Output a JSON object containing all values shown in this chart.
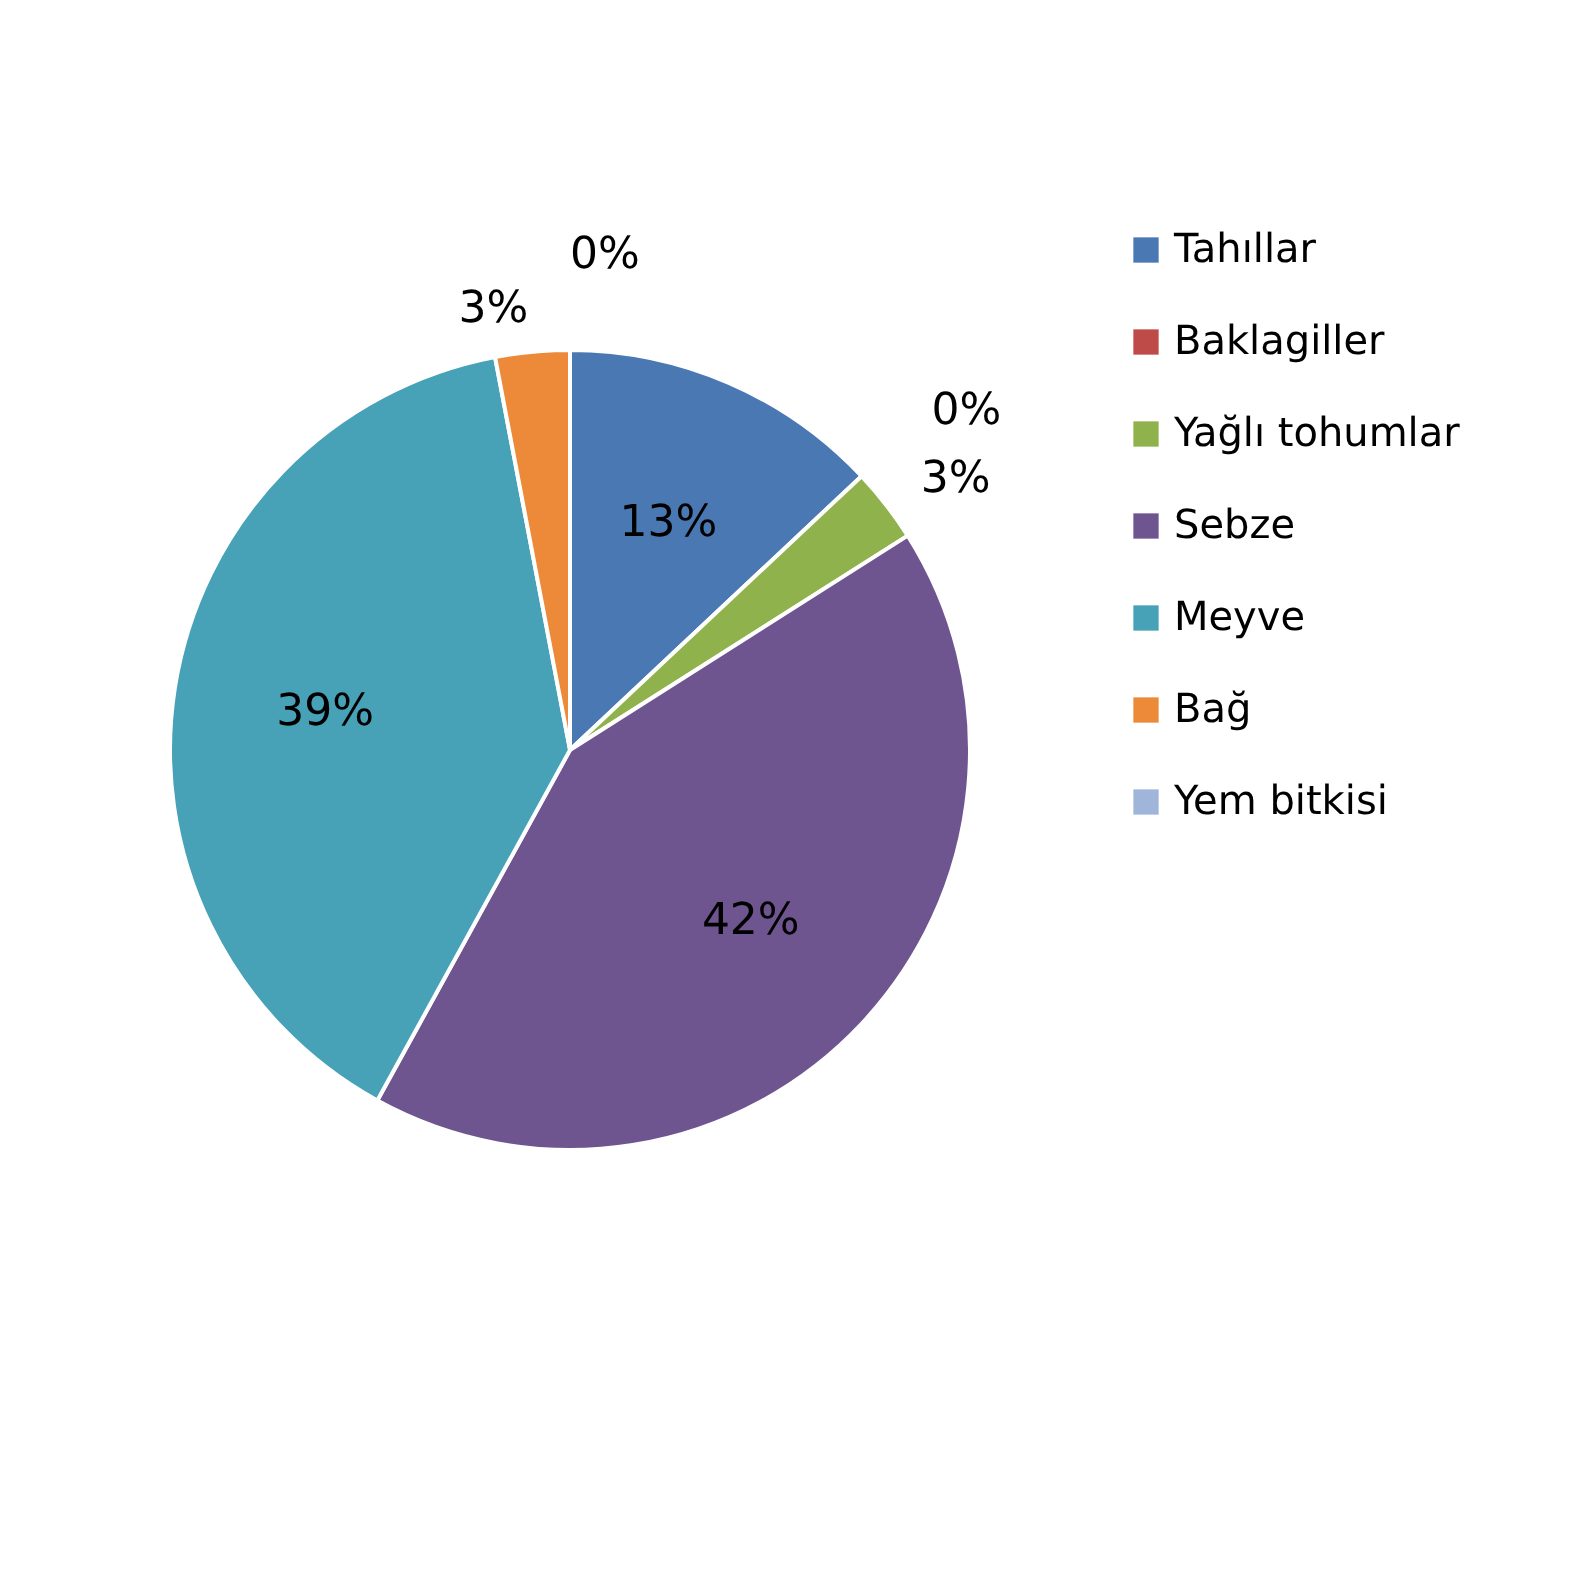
{
  "chart_data": {
    "type": "pie",
    "categories": [
      "Tahıllar",
      "Baklagiller",
      "Yağlı tohumlar",
      "Sebze",
      "Meyve",
      "Bağ",
      "Yem bitkisi"
    ],
    "values": [
      13,
      0,
      3,
      42,
      39,
      3,
      0
    ],
    "value_labels": [
      "13%",
      "0%",
      "3%",
      "42%",
      "39%",
      "3%",
      "0%"
    ],
    "colors": [
      "#4a78b2",
      "#be4b48",
      "#8fb24d",
      "#6e5590",
      "#47a2b8",
      "#ec8a3a",
      "#9fb6da"
    ],
    "legend": "right"
  }
}
